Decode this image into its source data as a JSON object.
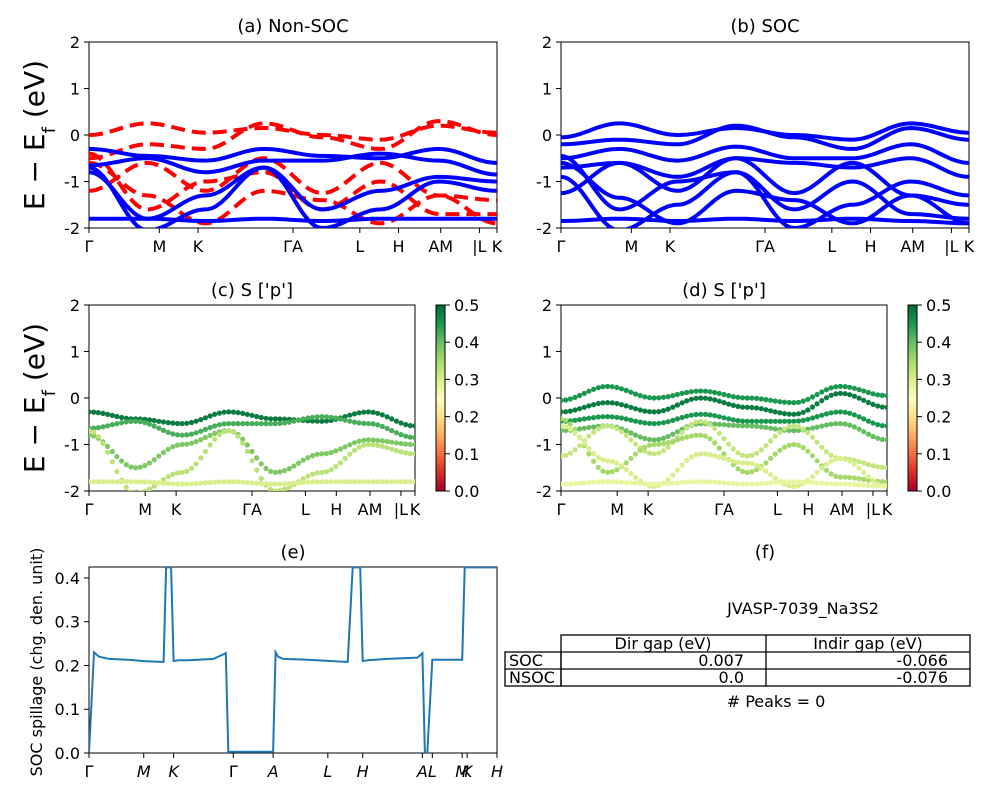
{
  "figure": {
    "ylabel_band": "E − E",
    "ylabel_band_sub": "f",
    "ylabel_band_unit": "(eV)"
  },
  "colors": {
    "nonsoc": "#ff0000",
    "soc": "#0000ff",
    "spillage": "#1f77b4",
    "cmap": [
      "#a50026",
      "#d73027",
      "#f46d43",
      "#fdae61",
      "#fee08b",
      "#ffffbf",
      "#d9ef8b",
      "#a6d96a",
      "#66bd63",
      "#1a9850",
      "#006837"
    ]
  },
  "kpath_band": {
    "labels": [
      "Γ",
      "M",
      "K",
      "ΓA",
      "L",
      "H",
      "AM",
      "|L",
      "K"
    ],
    "positions": [
      0,
      0.2,
      0.31,
      0.58,
      0.77,
      0.88,
      1.0,
      1.11,
      1.16
    ],
    "end": 1.16
  },
  "kpath_proj": {
    "labels": [
      "Γ",
      "M",
      "K",
      "ΓA",
      "L",
      "H",
      "AM",
      "|L",
      "K"
    ],
    "positions": [
      0,
      0.2,
      0.31,
      0.58,
      0.77,
      0.88,
      1.0,
      1.11,
      1.16
    ],
    "end": 1.16
  },
  "chart_data": [
    {
      "id": "a",
      "type": "line",
      "title": "(a) Non-SOC",
      "ylim": [
        -2,
        2
      ],
      "yticks": [
        -2,
        -1,
        0,
        1,
        2
      ],
      "series": [
        {
          "style": "dashed",
          "color": "#ff0000",
          "y": [
            0.0,
            0.25,
            0.05,
            0.15,
            0.0,
            -0.1,
            0.2,
            0.05
          ]
        },
        {
          "style": "dashed",
          "color": "#ff0000",
          "y": [
            -0.5,
            -0.2,
            -0.3,
            0.25,
            -0.05,
            -0.3,
            0.3,
            0.0
          ]
        },
        {
          "style": "dashed",
          "color": "#ff0000",
          "y": [
            -1.2,
            -0.6,
            -1.2,
            -0.5,
            -1.25,
            -0.6,
            -1.3,
            -1.4
          ]
        },
        {
          "style": "dashed",
          "color": "#ff0000",
          "y": [
            -0.4,
            -1.6,
            -1.0,
            -0.8,
            -1.6,
            -1.0,
            -1.7,
            -1.7
          ]
        },
        {
          "style": "dashed",
          "color": "#ff0000",
          "y": [
            -0.6,
            -1.3,
            -1.9,
            -1.2,
            -1.4,
            -1.9,
            -1.3,
            -1.9
          ]
        },
        {
          "style": "solid",
          "color": "#0000ff",
          "y": [
            -0.3,
            -0.45,
            -0.55,
            -0.3,
            -0.45,
            -0.5,
            -0.3,
            -0.6
          ]
        },
        {
          "style": "solid",
          "color": "#0000ff",
          "y": [
            -0.65,
            -0.5,
            -0.8,
            -0.55,
            -0.55,
            -0.4,
            -0.55,
            -0.85
          ]
        },
        {
          "style": "solid",
          "color": "#0000ff",
          "y": [
            -0.8,
            -1.8,
            -1.3,
            -0.7,
            -1.6,
            -1.2,
            -0.9,
            -1.0
          ]
        },
        {
          "style": "solid",
          "color": "#0000ff",
          "y": [
            -1.8,
            -1.8,
            -1.85,
            -1.8,
            -1.85,
            -1.8,
            -1.8,
            -1.8
          ]
        },
        {
          "style": "solid",
          "color": "#0000ff",
          "y": [
            -0.7,
            -2.05,
            -1.6,
            -0.7,
            -2.0,
            -1.6,
            -1.0,
            -1.2
          ]
        }
      ]
    },
    {
      "id": "b",
      "type": "line",
      "title": "(b) SOC",
      "ylim": [
        -2,
        2
      ],
      "yticks": [
        -2,
        -1,
        0,
        1,
        2
      ],
      "series": [
        {
          "style": "solid",
          "color": "#0000ff",
          "y": [
            -0.05,
            0.25,
            0.0,
            0.15,
            0.0,
            -0.1,
            0.25,
            0.05
          ]
        },
        {
          "style": "solid",
          "color": "#0000ff",
          "y": [
            -0.2,
            -0.1,
            -0.2,
            0.2,
            -0.05,
            -0.3,
            0.15,
            -0.1
          ]
        },
        {
          "style": "solid",
          "color": "#0000ff",
          "y": [
            -0.5,
            -0.3,
            -0.55,
            -0.25,
            -0.5,
            -0.5,
            -0.2,
            -0.6
          ]
        },
        {
          "style": "solid",
          "color": "#0000ff",
          "y": [
            -0.7,
            -0.6,
            -0.9,
            -0.5,
            -0.6,
            -0.7,
            -0.5,
            -0.9
          ]
        },
        {
          "style": "solid",
          "color": "#0000ff",
          "y": [
            -1.25,
            -0.6,
            -1.2,
            -0.5,
            -1.25,
            -0.6,
            -1.3,
            -1.5
          ]
        },
        {
          "style": "solid",
          "color": "#0000ff",
          "y": [
            -0.45,
            -1.6,
            -1.0,
            -0.8,
            -1.6,
            -1.0,
            -1.7,
            -1.8
          ]
        },
        {
          "style": "solid",
          "color": "#0000ff",
          "y": [
            -0.6,
            -1.35,
            -1.9,
            -1.2,
            -1.4,
            -1.9,
            -1.3,
            -1.9
          ]
        },
        {
          "style": "solid",
          "color": "#0000ff",
          "y": [
            -1.85,
            -1.8,
            -1.85,
            -1.8,
            -1.85,
            -1.8,
            -1.85,
            -1.9
          ]
        },
        {
          "style": "solid",
          "color": "#0000ff",
          "y": [
            -0.9,
            -2.05,
            -1.5,
            -0.8,
            -2.0,
            -1.5,
            -1.0,
            -1.3
          ]
        }
      ]
    },
    {
      "id": "c",
      "type": "scatter",
      "title": "(c)  S ['p']",
      "ylim": [
        -2,
        2
      ],
      "yticks": [
        -2,
        -1,
        0,
        1,
        2
      ],
      "colorbar": {
        "range": [
          0.0,
          0.5
        ],
        "ticks": [
          0.0,
          0.1,
          0.2,
          0.3,
          0.4,
          0.5
        ]
      },
      "series": [
        {
          "weight": 0.48,
          "y": [
            -0.3,
            -0.45,
            -0.55,
            -0.3,
            -0.45,
            -0.5,
            -0.3,
            -0.6
          ]
        },
        {
          "weight": 0.42,
          "y": [
            -0.65,
            -0.5,
            -0.8,
            -0.55,
            -0.55,
            -0.4,
            -0.55,
            -0.85
          ]
        },
        {
          "weight": 0.38,
          "y": [
            -0.8,
            -1.5,
            -1.0,
            -0.7,
            -1.6,
            -1.2,
            -0.9,
            -1.0
          ]
        },
        {
          "weight": 0.33,
          "y": [
            -0.7,
            -2.05,
            -1.6,
            -0.7,
            -2.0,
            -1.6,
            -1.0,
            -1.2
          ]
        },
        {
          "weight": 0.3,
          "y": [
            -1.8,
            -1.8,
            -1.85,
            -1.8,
            -1.85,
            -1.8,
            -1.8,
            -1.8
          ]
        }
      ]
    },
    {
      "id": "d",
      "type": "scatter",
      "title": "(d) S ['p']",
      "ylim": [
        -2,
        2
      ],
      "yticks": [
        -2,
        -1,
        0,
        1,
        2
      ],
      "colorbar": {
        "range": [
          0.0,
          0.5
        ],
        "ticks": [
          0.0,
          0.1,
          0.2,
          0.3,
          0.4,
          0.5
        ]
      },
      "series": [
        {
          "weight": 0.45,
          "y": [
            -0.05,
            0.25,
            0.0,
            0.15,
            0.0,
            -0.1,
            0.25,
            0.05
          ]
        },
        {
          "weight": 0.48,
          "y": [
            -0.3,
            -0.1,
            -0.3,
            0.0,
            -0.2,
            -0.35,
            0.1,
            -0.2
          ]
        },
        {
          "weight": 0.45,
          "y": [
            -0.5,
            -0.4,
            -0.55,
            -0.35,
            -0.5,
            -0.5,
            -0.3,
            -0.6
          ]
        },
        {
          "weight": 0.4,
          "y": [
            -0.7,
            -0.6,
            -0.9,
            -0.55,
            -0.6,
            -0.7,
            -0.55,
            -0.9
          ]
        },
        {
          "weight": 0.32,
          "y": [
            -1.25,
            -0.6,
            -1.2,
            -0.5,
            -1.25,
            -0.6,
            -1.3,
            -1.5
          ]
        },
        {
          "weight": 0.35,
          "y": [
            -0.45,
            -1.6,
            -1.0,
            -0.8,
            -1.6,
            -1.0,
            -1.7,
            -1.8
          ]
        },
        {
          "weight": 0.3,
          "y": [
            -0.6,
            -1.35,
            -1.9,
            -1.2,
            -1.4,
            -1.9,
            -1.3,
            -1.9
          ]
        },
        {
          "weight": 0.28,
          "y": [
            -1.85,
            -1.8,
            -1.85,
            -1.8,
            -1.85,
            -1.8,
            -1.85,
            -1.9
          ]
        }
      ]
    },
    {
      "id": "e",
      "type": "line",
      "title": "(e)",
      "ylabel": "SOC spillage (chg. den. unit)",
      "ylim": [
        0.0,
        0.425
      ],
      "yticks": [
        0.0,
        0.1,
        0.2,
        0.3,
        0.4
      ],
      "xticklabels": [
        "Γ",
        "M",
        "K",
        "Γ",
        "A",
        "L",
        "H",
        "A",
        "L",
        "M",
        "K",
        "H"
      ],
      "xtick_positions": [
        0.0,
        0.11,
        0.17,
        0.29,
        0.37,
        0.48,
        0.55,
        0.67,
        0.69,
        0.75,
        0.76,
        0.82
      ],
      "x": [
        0.0,
        0.01,
        0.02,
        0.04,
        0.08,
        0.11,
        0.15,
        0.155,
        0.165,
        0.17,
        0.18,
        0.2,
        0.25,
        0.275,
        0.28,
        0.285,
        0.37,
        0.375,
        0.38,
        0.39,
        0.44,
        0.52,
        0.53,
        0.535,
        0.545,
        0.55,
        0.56,
        0.6,
        0.66,
        0.67,
        0.675,
        0.68,
        0.69,
        0.695,
        0.74,
        0.75,
        0.755,
        0.82
      ],
      "y": [
        0.0,
        0.23,
        0.22,
        0.215,
        0.213,
        0.21,
        0.208,
        0.425,
        0.425,
        0.21,
        0.212,
        0.212,
        0.215,
        0.228,
        0.003,
        0.003,
        0.003,
        0.23,
        0.22,
        0.215,
        0.213,
        0.208,
        0.425,
        0.425,
        0.425,
        0.21,
        0.212,
        0.215,
        0.218,
        0.228,
        0.0,
        0.0,
        0.213,
        0.213,
        0.213,
        0.213,
        0.425,
        0.425
      ],
      "xlim": [
        0.0,
        0.82
      ]
    }
  ],
  "table": {
    "title": "(f)",
    "name": "JVASP-7039_Na3S2",
    "col_headers": [
      "Dir gap (eV)",
      "Indir gap (eV)"
    ],
    "rows": [
      {
        "label": "SOC",
        "dir": "0.007",
        "indir": "-0.066"
      },
      {
        "label": "NSOC",
        "dir": "0.0",
        "indir": "-0.076"
      }
    ],
    "peaks": "# Peaks = 0"
  }
}
